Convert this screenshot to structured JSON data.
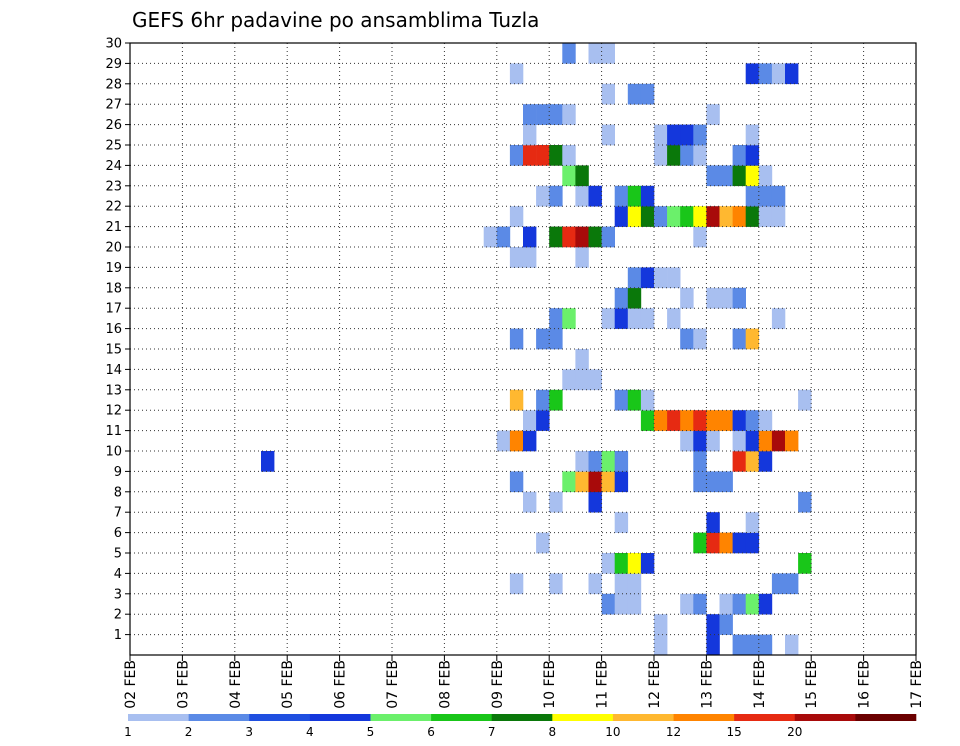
{
  "chart_data": {
    "type": "heatmap",
    "title": "GEFS 6hr padavine po ansamblima Tuzla",
    "x_categories": [
      "02 FEB",
      "03 FEB",
      "04 FEB",
      "05 FEB",
      "06 FEB",
      "07 FEB",
      "08 FEB",
      "09 FEB",
      "10 FEB",
      "11 FEB",
      "12 FEB",
      "13 FEB",
      "14 FEB",
      "15 FEB",
      "16 FEB",
      "17 FEB"
    ],
    "y_ticks": [
      1,
      2,
      3,
      4,
      5,
      6,
      7,
      8,
      9,
      10,
      11,
      12,
      13,
      14,
      15,
      16,
      17,
      18,
      19,
      20,
      21,
      22,
      23,
      24,
      25,
      26,
      27,
      28,
      29,
      30
    ],
    "ylim": [
      0,
      30
    ],
    "grid": true,
    "legend_position": "bottom",
    "legend": {
      "labels": [
        "1",
        "2",
        "3",
        "4",
        "5",
        "6",
        "7",
        "8",
        "10",
        "12",
        "15",
        "20"
      ],
      "colors": [
        "#a8bff0",
        "#5b8ae6",
        "#1f4fe0",
        "#1437dc",
        "#6bf06b",
        "#19c619",
        "#0a780a",
        "#ffff00",
        "#ffb830",
        "#ff8400",
        "#e62a12",
        "#a80a0a",
        "#6b0000"
      ]
    },
    "palette": {
      "l": "#a8bff0",
      "m": "#5b8ae6",
      "b": "#1f4fe0",
      "B": "#1437dc",
      "g": "#6bf06b",
      "G": "#19c619",
      "D": "#0a780a",
      "y": "#ffff00",
      "o": "#ffb830",
      "O": "#ff8400",
      "r": "#e62a12",
      "R": "#a80a0a",
      "K": "#6b0000"
    },
    "cell_columns_per_day": 4,
    "cell_column_start_day": "02 FEB",
    "rows": [
      {
        "member": 0,
        "cells": [
          [
            40,
            "l"
          ],
          [
            44,
            "B"
          ],
          [
            46,
            "m"
          ],
          [
            47,
            "m"
          ],
          [
            48,
            "m"
          ],
          [
            50,
            "l"
          ]
        ]
      },
      {
        "member": 1,
        "cells": [
          [
            40,
            "l"
          ],
          [
            44,
            "B"
          ],
          [
            45,
            "m"
          ]
        ]
      },
      {
        "member": 2,
        "cells": [
          [
            36,
            "m"
          ],
          [
            37,
            "l"
          ],
          [
            38,
            "l"
          ],
          [
            42,
            "l"
          ],
          [
            43,
            "m"
          ],
          [
            45,
            "l"
          ],
          [
            46,
            "m"
          ],
          [
            47,
            "g"
          ],
          [
            48,
            "B"
          ]
        ]
      },
      {
        "member": 3,
        "cells": [
          [
            29,
            "l"
          ],
          [
            32,
            "l"
          ],
          [
            35,
            "l"
          ],
          [
            37,
            "l"
          ],
          [
            38,
            "l"
          ],
          [
            49,
            "m"
          ],
          [
            50,
            "m"
          ]
        ]
      },
      {
        "member": 4,
        "cells": [
          [
            36,
            "l"
          ],
          [
            37,
            "G"
          ],
          [
            38,
            "y"
          ],
          [
            39,
            "B"
          ],
          [
            51,
            "G"
          ]
        ]
      },
      {
        "member": 5,
        "cells": [
          [
            31,
            "l"
          ],
          [
            43,
            "G"
          ],
          [
            44,
            "r"
          ],
          [
            45,
            "O"
          ],
          [
            46,
            "B"
          ],
          [
            47,
            "B"
          ]
        ]
      },
      {
        "member": 6,
        "cells": [
          [
            37,
            "l"
          ],
          [
            44,
            "B"
          ],
          [
            47,
            "l"
          ]
        ]
      },
      {
        "member": 7,
        "cells": [
          [
            30,
            "l"
          ],
          [
            32,
            "l"
          ],
          [
            35,
            "B"
          ],
          [
            51,
            "m"
          ]
        ]
      },
      {
        "member": 8,
        "cells": [
          [
            29,
            "m"
          ],
          [
            33,
            "g"
          ],
          [
            34,
            "o"
          ],
          [
            35,
            "R"
          ],
          [
            36,
            "o"
          ],
          [
            37,
            "B"
          ],
          [
            43,
            "m"
          ],
          [
            44,
            "m"
          ],
          [
            45,
            "m"
          ]
        ]
      },
      {
        "member": 9,
        "cells": [
          [
            10,
            "B"
          ],
          [
            34,
            "l"
          ],
          [
            35,
            "m"
          ],
          [
            36,
            "g"
          ],
          [
            37,
            "m"
          ],
          [
            43,
            "m"
          ],
          [
            46,
            "r"
          ],
          [
            47,
            "o"
          ],
          [
            48,
            "B"
          ]
        ]
      },
      {
        "member": 10,
        "cells": [
          [
            28,
            "l"
          ],
          [
            29,
            "O"
          ],
          [
            30,
            "B"
          ],
          [
            42,
            "l"
          ],
          [
            43,
            "B"
          ],
          [
            44,
            "l"
          ],
          [
            46,
            "l"
          ],
          [
            47,
            "B"
          ],
          [
            48,
            "O"
          ],
          [
            49,
            "R"
          ],
          [
            50,
            "O"
          ]
        ]
      },
      {
        "member": 11,
        "cells": [
          [
            30,
            "l"
          ],
          [
            31,
            "B"
          ],
          [
            39,
            "G"
          ],
          [
            40,
            "O"
          ],
          [
            41,
            "r"
          ],
          [
            42,
            "O"
          ],
          [
            43,
            "r"
          ],
          [
            44,
            "O"
          ],
          [
            45,
            "O"
          ],
          [
            46,
            "B"
          ],
          [
            47,
            "m"
          ],
          [
            48,
            "l"
          ]
        ]
      },
      {
        "member": 12,
        "cells": [
          [
            29,
            "o"
          ],
          [
            31,
            "m"
          ],
          [
            32,
            "G"
          ],
          [
            37,
            "m"
          ],
          [
            38,
            "G"
          ],
          [
            39,
            "l"
          ],
          [
            51,
            "l"
          ]
        ]
      },
      {
        "member": 13,
        "cells": [
          [
            33,
            "l"
          ],
          [
            34,
            "l"
          ],
          [
            35,
            "l"
          ]
        ]
      },
      {
        "member": 14,
        "cells": [
          [
            34,
            "l"
          ]
        ]
      },
      {
        "member": 15,
        "cells": [
          [
            29,
            "m"
          ],
          [
            31,
            "m"
          ],
          [
            32,
            "m"
          ],
          [
            42,
            "m"
          ],
          [
            43,
            "l"
          ],
          [
            46,
            "m"
          ],
          [
            47,
            "o"
          ]
        ]
      },
      {
        "member": 16,
        "cells": [
          [
            32,
            "m"
          ],
          [
            33,
            "g"
          ],
          [
            36,
            "l"
          ],
          [
            37,
            "B"
          ],
          [
            38,
            "l"
          ],
          [
            39,
            "l"
          ],
          [
            41,
            "l"
          ],
          [
            49,
            "l"
          ]
        ]
      },
      {
        "member": 17,
        "cells": [
          [
            37,
            "m"
          ],
          [
            38,
            "D"
          ],
          [
            42,
            "l"
          ],
          [
            44,
            "l"
          ],
          [
            45,
            "l"
          ],
          [
            46,
            "m"
          ]
        ]
      },
      {
        "member": 18,
        "cells": [
          [
            38,
            "m"
          ],
          [
            39,
            "B"
          ],
          [
            40,
            "l"
          ],
          [
            41,
            "l"
          ]
        ]
      },
      {
        "member": 19,
        "cells": [
          [
            29,
            "l"
          ],
          [
            30,
            "l"
          ],
          [
            34,
            "l"
          ]
        ]
      },
      {
        "member": 20,
        "cells": [
          [
            27,
            "l"
          ],
          [
            28,
            "m"
          ],
          [
            30,
            "B"
          ],
          [
            32,
            "D"
          ],
          [
            33,
            "r"
          ],
          [
            34,
            "R"
          ],
          [
            35,
            "D"
          ],
          [
            36,
            "m"
          ],
          [
            43,
            "l"
          ]
        ]
      },
      {
        "member": 21,
        "cells": [
          [
            29,
            "l"
          ],
          [
            37,
            "B"
          ],
          [
            38,
            "y"
          ],
          [
            39,
            "D"
          ],
          [
            40,
            "m"
          ],
          [
            41,
            "g"
          ],
          [
            42,
            "G"
          ],
          [
            43,
            "y"
          ],
          [
            44,
            "R"
          ],
          [
            45,
            "o"
          ],
          [
            46,
            "O"
          ],
          [
            47,
            "D"
          ],
          [
            48,
            "l"
          ],
          [
            49,
            "l"
          ]
        ]
      },
      {
        "member": 22,
        "cells": [
          [
            31,
            "l"
          ],
          [
            32,
            "m"
          ],
          [
            34,
            "l"
          ],
          [
            35,
            "B"
          ],
          [
            37,
            "m"
          ],
          [
            38,
            "G"
          ],
          [
            39,
            "B"
          ],
          [
            47,
            "m"
          ],
          [
            48,
            "m"
          ],
          [
            49,
            "m"
          ]
        ]
      },
      {
        "member": 23,
        "cells": [
          [
            33,
            "g"
          ],
          [
            34,
            "D"
          ],
          [
            44,
            "m"
          ],
          [
            45,
            "m"
          ],
          [
            46,
            "D"
          ],
          [
            47,
            "y"
          ],
          [
            48,
            "l"
          ]
        ]
      },
      {
        "member": 24,
        "cells": [
          [
            29,
            "m"
          ],
          [
            30,
            "r"
          ],
          [
            31,
            "r"
          ],
          [
            32,
            "D"
          ],
          [
            33,
            "l"
          ],
          [
            40,
            "l"
          ],
          [
            41,
            "D"
          ],
          [
            42,
            "m"
          ],
          [
            43,
            "l"
          ],
          [
            46,
            "m"
          ],
          [
            47,
            "B"
          ]
        ]
      },
      {
        "member": 25,
        "cells": [
          [
            30,
            "l"
          ],
          [
            36,
            "l"
          ],
          [
            40,
            "l"
          ],
          [
            41,
            "B"
          ],
          [
            42,
            "B"
          ],
          [
            43,
            "m"
          ],
          [
            47,
            "l"
          ]
        ]
      },
      {
        "member": 26,
        "cells": [
          [
            30,
            "m"
          ],
          [
            31,
            "m"
          ],
          [
            32,
            "m"
          ],
          [
            33,
            "l"
          ],
          [
            44,
            "l"
          ]
        ]
      },
      {
        "member": 27,
        "cells": [
          [
            36,
            "l"
          ],
          [
            38,
            "m"
          ],
          [
            39,
            "m"
          ]
        ]
      },
      {
        "member": 28,
        "cells": [
          [
            29,
            "l"
          ],
          [
            47,
            "B"
          ],
          [
            48,
            "m"
          ],
          [
            49,
            "l"
          ],
          [
            50,
            "B"
          ]
        ]
      },
      {
        "member": 29,
        "cells": [
          [
            33,
            "m"
          ],
          [
            35,
            "l"
          ],
          [
            36,
            "l"
          ]
        ]
      }
    ]
  }
}
